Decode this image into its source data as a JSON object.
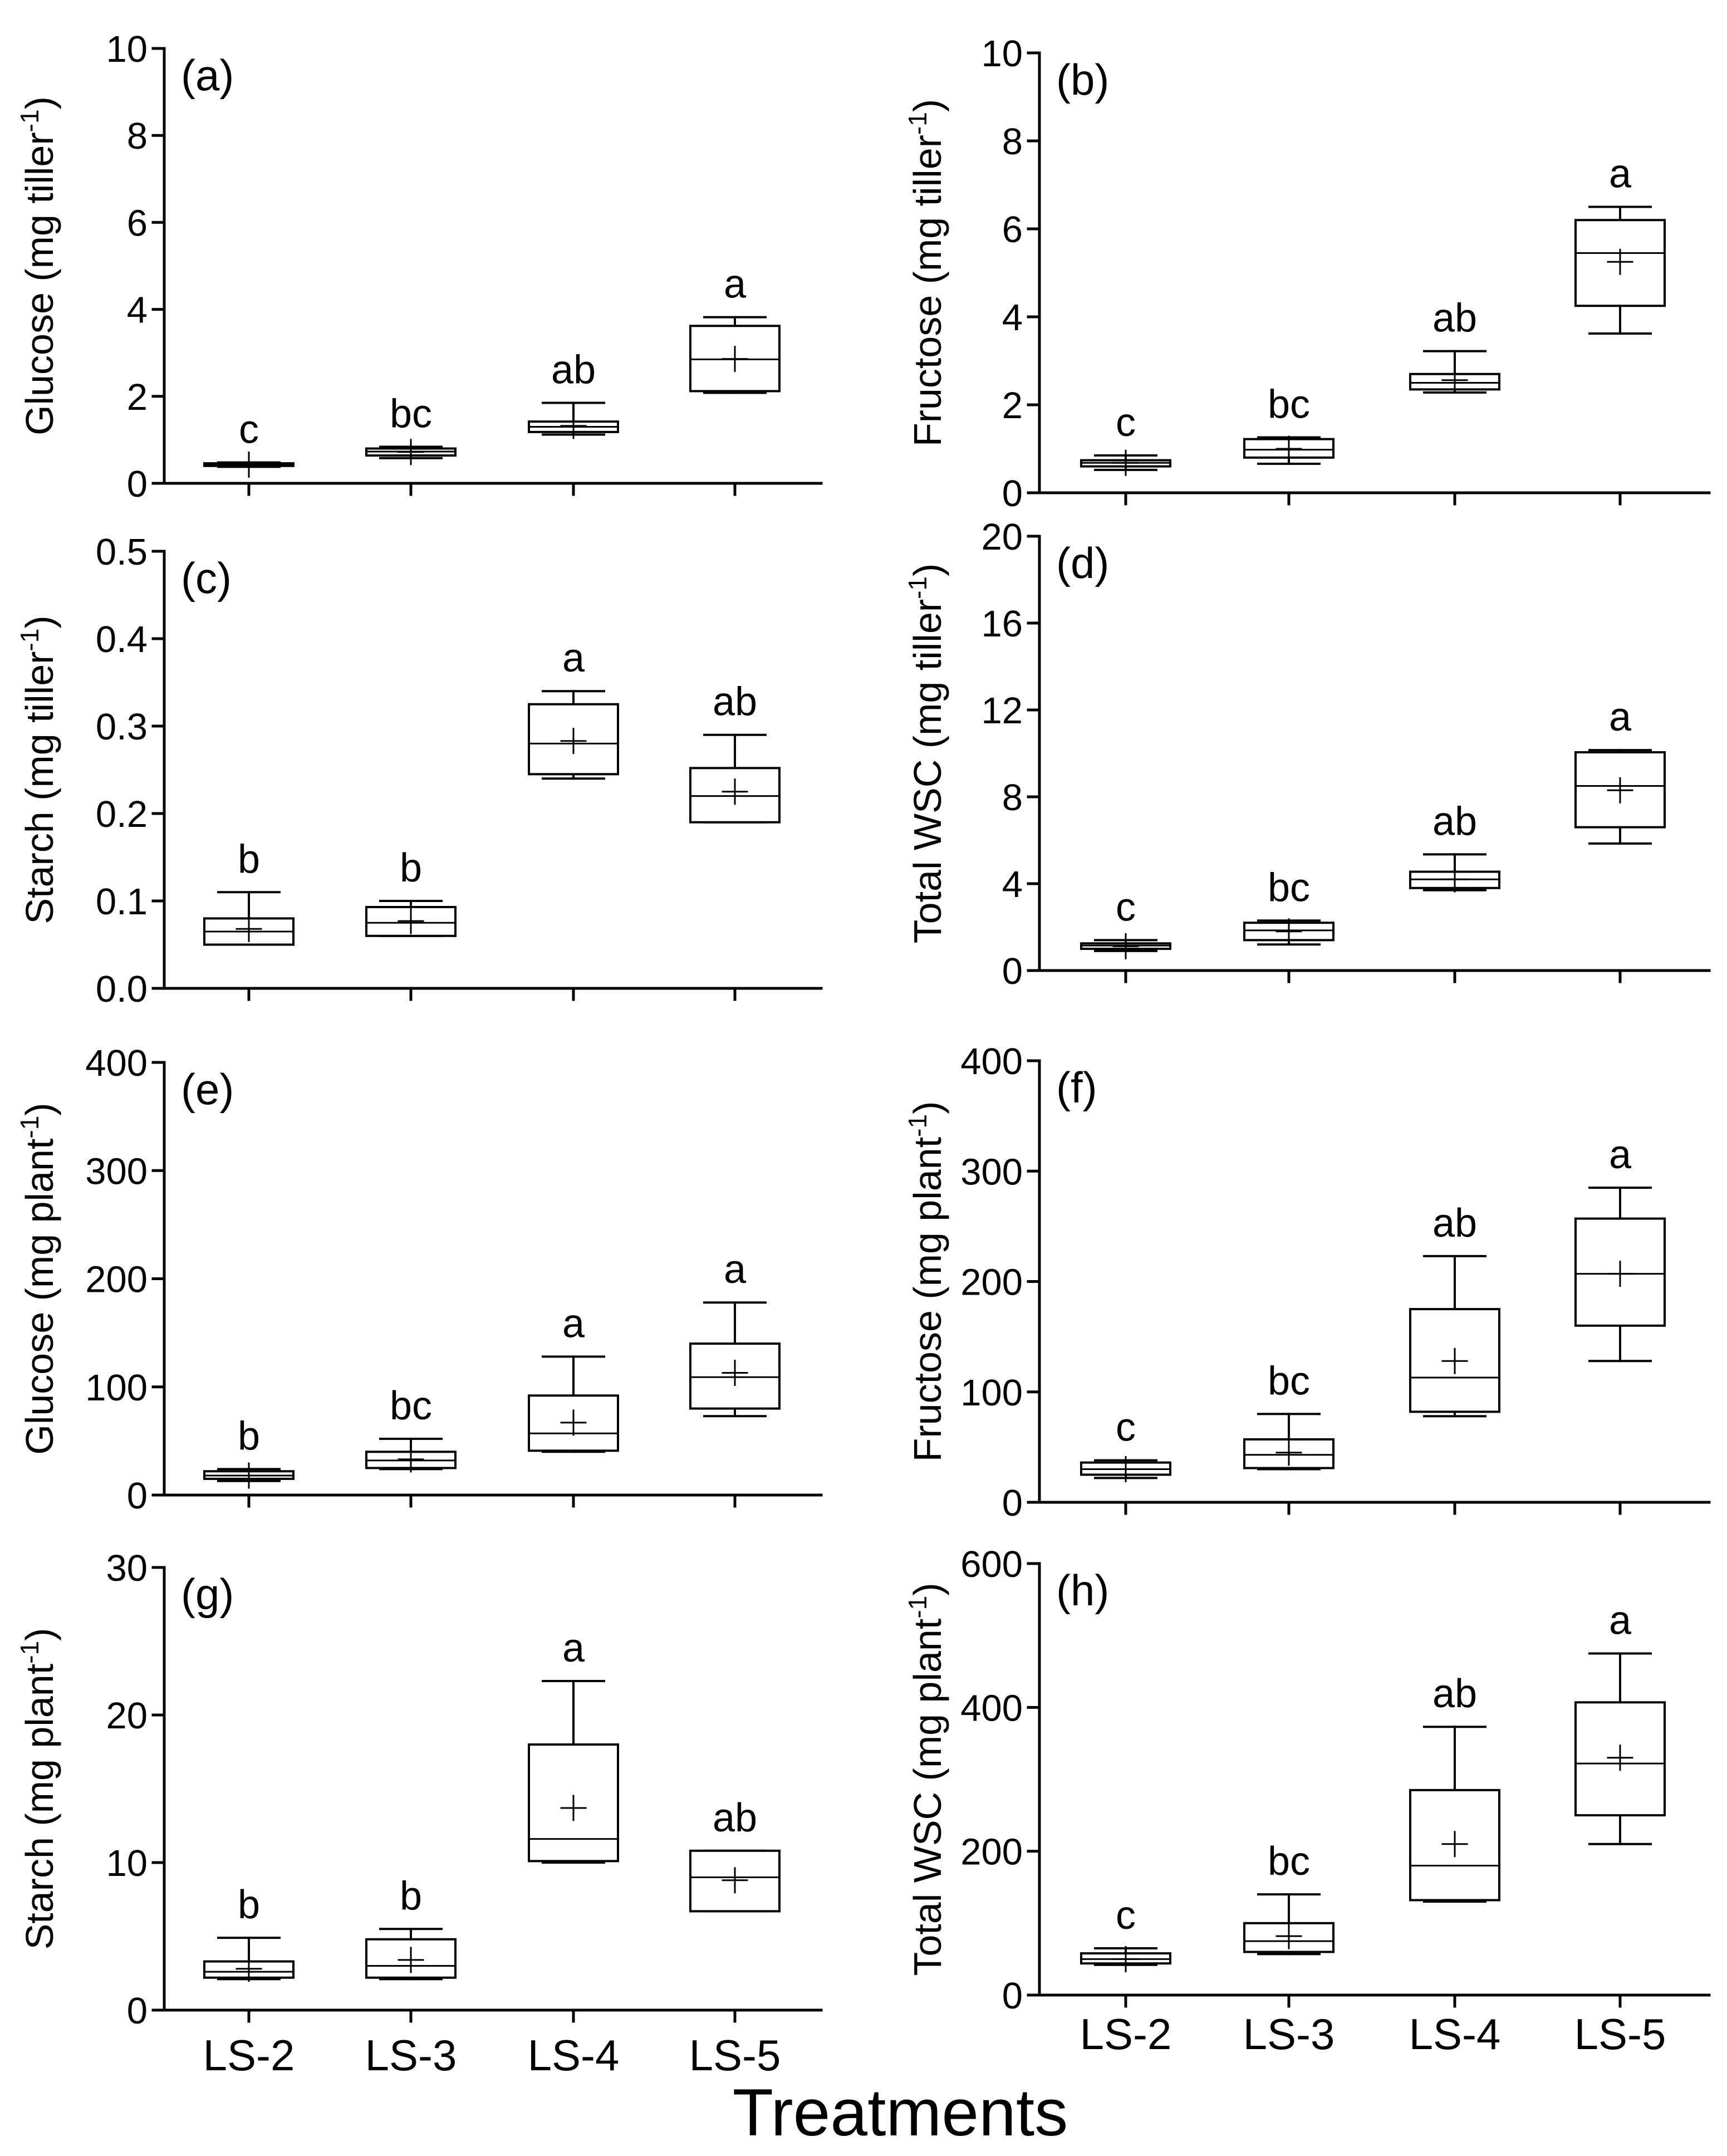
{
  "figure": {
    "xlabel": "Treatments",
    "colors": {
      "ink": "#000000",
      "background": "#ffffff",
      "box_fill": "#ffffff"
    }
  },
  "chart_data": [
    {
      "type": "box",
      "panel_label": "(a)",
      "ylabel": "Glucose (mg tiller",
      "ylabel_unit_sup": "-1",
      "ylabel_close": ")",
      "categories": [
        "LS-2",
        "LS-3",
        "LS-4",
        "LS-5"
      ],
      "ylim": [
        0,
        10
      ],
      "yticks": [
        0,
        2,
        4,
        6,
        8,
        10
      ],
      "ytick_labels": [
        "0",
        "2",
        "4",
        "6",
        "8",
        "10"
      ],
      "boxes": [
        {
          "min": 0.38,
          "q1": 0.4,
          "median": 0.43,
          "q3": 0.46,
          "max": 0.48,
          "mean": 0.43
        },
        {
          "min": 0.58,
          "q1": 0.64,
          "median": 0.73,
          "q3": 0.8,
          "max": 0.84,
          "mean": 0.72
        },
        {
          "min": 1.12,
          "q1": 1.18,
          "median": 1.3,
          "q3": 1.42,
          "max": 1.85,
          "mean": 1.32
        },
        {
          "min": 2.08,
          "q1": 2.12,
          "median": 2.85,
          "q3": 3.62,
          "max": 3.82,
          "mean": 2.86
        }
      ],
      "letters": [
        "c",
        "bc",
        "ab",
        "a"
      ]
    },
    {
      "type": "box",
      "panel_label": "(b)",
      "ylabel": "Fructose (mg tiller",
      "ylabel_unit_sup": "-1",
      "ylabel_close": ")",
      "categories": [
        "LS-2",
        "LS-3",
        "LS-4",
        "LS-5"
      ],
      "ylim": [
        0,
        10
      ],
      "yticks": [
        0,
        2,
        4,
        6,
        8,
        10
      ],
      "ytick_labels": [
        "0",
        "2",
        "4",
        "6",
        "8",
        "10"
      ],
      "boxes": [
        {
          "min": 0.52,
          "q1": 0.6,
          "median": 0.68,
          "q3": 0.74,
          "max": 0.85,
          "mean": 0.68
        },
        {
          "min": 0.66,
          "q1": 0.8,
          "median": 0.98,
          "q3": 1.22,
          "max": 1.26,
          "mean": 1.0
        },
        {
          "min": 2.28,
          "q1": 2.35,
          "median": 2.5,
          "q3": 2.7,
          "max": 3.22,
          "mean": 2.56
        },
        {
          "min": 3.62,
          "q1": 4.25,
          "median": 5.45,
          "q3": 6.2,
          "max": 6.5,
          "mean": 5.25
        }
      ],
      "letters": [
        "c",
        "bc",
        "ab",
        "a"
      ]
    },
    {
      "type": "box",
      "panel_label": "(c)",
      "ylabel": "Starch (mg tiller",
      "ylabel_unit_sup": "-1",
      "ylabel_close": ")",
      "categories": [
        "LS-2",
        "LS-3",
        "LS-4",
        "LS-5"
      ],
      "ylim": [
        0,
        0.5
      ],
      "yticks": [
        0,
        0.1,
        0.2,
        0.3,
        0.4,
        0.5
      ],
      "ytick_labels": [
        "0.0",
        "0.1",
        "0.2",
        "0.3",
        "0.4",
        "0.5"
      ],
      "boxes": [
        {
          "min": 0.05,
          "q1": 0.05,
          "median": 0.065,
          "q3": 0.08,
          "max": 0.11,
          "mean": 0.068
        },
        {
          "min": 0.06,
          "q1": 0.06,
          "median": 0.075,
          "q3": 0.093,
          "max": 0.1,
          "mean": 0.077
        },
        {
          "min": 0.24,
          "q1": 0.245,
          "median": 0.28,
          "q3": 0.325,
          "max": 0.34,
          "mean": 0.283
        },
        {
          "min": 0.19,
          "q1": 0.19,
          "median": 0.22,
          "q3": 0.252,
          "max": 0.29,
          "mean": 0.225
        }
      ],
      "letters": [
        "b",
        "b",
        "a",
        "ab"
      ]
    },
    {
      "type": "box",
      "panel_label": "(d)",
      "ylabel": "Total  WSC  (mg tiller",
      "ylabel_unit_sup": "-1",
      "ylabel_close": ")",
      "categories": [
        "LS-2",
        "LS-3",
        "LS-4",
        "LS-5"
      ],
      "ylim": [
        0,
        20
      ],
      "yticks": [
        0,
        4,
        8,
        12,
        16,
        20
      ],
      "ytick_labels": [
        "0",
        "4",
        "8",
        "12",
        "16",
        "20"
      ],
      "boxes": [
        {
          "min": 0.9,
          "q1": 1.0,
          "median": 1.15,
          "q3": 1.25,
          "max": 1.4,
          "mean": 1.12
        },
        {
          "min": 1.2,
          "q1": 1.4,
          "median": 1.85,
          "q3": 2.2,
          "max": 2.3,
          "mean": 1.8
        },
        {
          "min": 3.7,
          "q1": 3.8,
          "median": 4.2,
          "q3": 4.55,
          "max": 5.35,
          "mean": 4.2
        },
        {
          "min": 5.85,
          "q1": 6.6,
          "median": 8.5,
          "q3": 10.05,
          "max": 10.15,
          "mean": 8.3
        }
      ],
      "letters": [
        "c",
        "bc",
        "ab",
        "a"
      ]
    },
    {
      "type": "box",
      "panel_label": "(e)",
      "ylabel": "Glucose (mg plant",
      "ylabel_unit_sup": "-1",
      "ylabel_close": ")",
      "categories": [
        "LS-2",
        "LS-3",
        "LS-4",
        "LS-5"
      ],
      "ylim": [
        0,
        400
      ],
      "yticks": [
        0,
        100,
        200,
        300,
        400
      ],
      "ytick_labels": [
        "0",
        "100",
        "200",
        "300",
        "400"
      ],
      "boxes": [
        {
          "min": 13,
          "q1": 15,
          "median": 18,
          "q3": 22,
          "max": 24,
          "mean": 18
        },
        {
          "min": 24,
          "q1": 25,
          "median": 32,
          "q3": 40,
          "max": 52,
          "mean": 33
        },
        {
          "min": 40,
          "q1": 41,
          "median": 57,
          "q3": 92,
          "max": 128,
          "mean": 67
        },
        {
          "min": 73,
          "q1": 80,
          "median": 109,
          "q3": 140,
          "max": 178,
          "mean": 113
        }
      ],
      "letters": [
        "b",
        "bc",
        "a",
        "a"
      ]
    },
    {
      "type": "box",
      "panel_label": "(f)",
      "ylabel": "Fructose (mg plant",
      "ylabel_unit_sup": "-1",
      "ylabel_close": ")",
      "categories": [
        "LS-2",
        "LS-3",
        "LS-4",
        "LS-5"
      ],
      "ylim": [
        0,
        400
      ],
      "yticks": [
        0,
        100,
        200,
        300,
        400
      ],
      "ytick_labels": [
        "0",
        "100",
        "200",
        "300",
        "400"
      ],
      "boxes": [
        {
          "min": 22,
          "q1": 25,
          "median": 30,
          "q3": 36,
          "max": 38,
          "mean": 30
        },
        {
          "min": 30,
          "q1": 31,
          "median": 43,
          "q3": 57,
          "max": 80,
          "mean": 45
        },
        {
          "min": 78,
          "q1": 82,
          "median": 113,
          "q3": 175,
          "max": 223,
          "mean": 128
        },
        {
          "min": 128,
          "q1": 160,
          "median": 207,
          "q3": 257,
          "max": 285,
          "mean": 207
        }
      ],
      "letters": [
        "c",
        "bc",
        "ab",
        "a"
      ]
    },
    {
      "type": "box",
      "panel_label": "(g)",
      "ylabel": "Starch (mg plant",
      "ylabel_unit_sup": "-1",
      "ylabel_close": ")",
      "categories": [
        "LS-2",
        "LS-3",
        "LS-4",
        "LS-5"
      ],
      "ylim": [
        0,
        30
      ],
      "yticks": [
        0,
        10,
        20,
        30
      ],
      "ytick_labels": [
        "0",
        "10",
        "20",
        "30"
      ],
      "boxes": [
        {
          "min": 2.1,
          "q1": 2.2,
          "median": 2.6,
          "q3": 3.3,
          "max": 4.9,
          "mean": 2.8
        },
        {
          "min": 2.1,
          "q1": 2.2,
          "median": 3.0,
          "q3": 4.8,
          "max": 5.5,
          "mean": 3.4
        },
        {
          "min": 10.0,
          "q1": 10.1,
          "median": 11.6,
          "q3": 18.0,
          "max": 22.3,
          "mean": 13.7
        },
        {
          "min": 6.7,
          "q1": 6.7,
          "median": 9.0,
          "q3": 10.8,
          "max": 10.8,
          "mean": 8.8
        }
      ],
      "letters": [
        "b",
        "b",
        "a",
        "ab"
      ]
    },
    {
      "type": "box",
      "panel_label": "(h)",
      "ylabel": "Total WSC (mg plant",
      "ylabel_unit_sup": "-1",
      "ylabel_close": ")",
      "categories": [
        "LS-2",
        "LS-3",
        "LS-4",
        "LS-5"
      ],
      "ylim": [
        0,
        600
      ],
      "yticks": [
        0,
        200,
        400,
        600
      ],
      "ytick_labels": [
        "0",
        "200",
        "400",
        "600"
      ],
      "boxes": [
        {
          "min": 42,
          "q1": 44,
          "median": 50,
          "q3": 58,
          "max": 65,
          "mean": 50
        },
        {
          "min": 57,
          "q1": 60,
          "median": 75,
          "q3": 100,
          "max": 140,
          "mean": 82
        },
        {
          "min": 130,
          "q1": 132,
          "median": 180,
          "q3": 285,
          "max": 373,
          "mean": 210
        },
        {
          "min": 210,
          "q1": 250,
          "median": 322,
          "q3": 407,
          "max": 475,
          "mean": 330
        }
      ],
      "letters": [
        "c",
        "bc",
        "ab",
        "a"
      ]
    }
  ]
}
